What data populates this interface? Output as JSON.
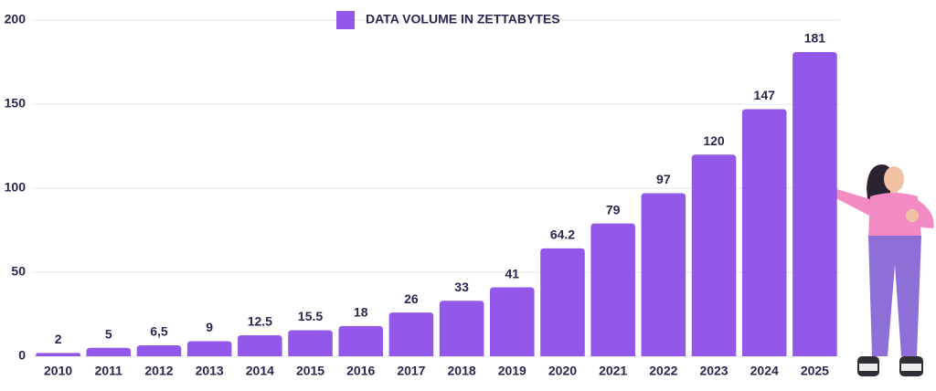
{
  "chart_data": {
    "type": "bar",
    "categories": [
      "2010",
      "2011",
      "2012",
      "2013",
      "2014",
      "2015",
      "2016",
      "2017",
      "2018",
      "2019",
      "2020",
      "2021",
      "2022",
      "2023",
      "2024",
      "2025"
    ],
    "series": [
      {
        "name": "DATA VOLUME IN ZETTABYTES",
        "color": "#9357ea",
        "values": [
          2,
          5,
          6.5,
          9,
          12.5,
          15.5,
          18,
          26,
          33,
          41,
          64.2,
          79,
          97,
          120,
          147,
          181
        ],
        "value_labels": [
          "2",
          "5",
          "6,5",
          "9",
          "12.5",
          "15.5",
          "18",
          "26",
          "33",
          "41",
          "64.2",
          "79",
          "97",
          "120",
          "147",
          "181"
        ]
      }
    ],
    "ylim": [
      0,
      200
    ],
    "yticks": [
      0,
      50,
      100,
      150,
      200
    ],
    "grid": true
  }
}
